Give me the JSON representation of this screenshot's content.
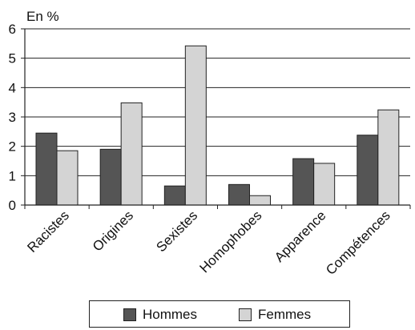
{
  "chart_data": {
    "type": "bar",
    "ylabel": "En %",
    "xlabel": "",
    "ylim": [
      0,
      6
    ],
    "yticks": [
      "0",
      "1",
      "2",
      "3",
      "4",
      "5",
      "6"
    ],
    "grid": true,
    "legend_position": "bottom",
    "categories": [
      "Racistes",
      "Origines",
      "Sexistes",
      "Homophobes",
      "Apparence",
      "Compétences"
    ],
    "series": [
      {
        "name": "Hommes",
        "color": "#555555",
        "values": [
          2.45,
          1.9,
          0.65,
          0.7,
          1.58,
          2.38
        ]
      },
      {
        "name": "Femmes",
        "color": "#d4d4d4",
        "values": [
          1.85,
          3.48,
          5.42,
          0.32,
          1.42,
          3.24
        ]
      }
    ]
  }
}
